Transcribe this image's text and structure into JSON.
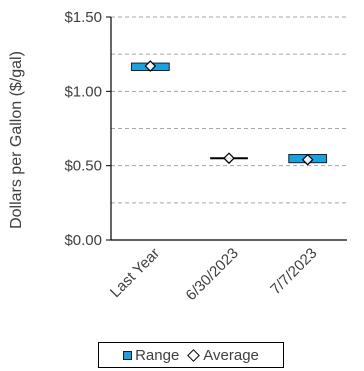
{
  "chart_data": {
    "type": "floating-bar",
    "ylabel": "Dollars per Gallon ($/gal)",
    "ylim": [
      0,
      1.5
    ],
    "yticks": [
      {
        "value": 0,
        "label": "$0.00"
      },
      {
        "value": 0.5,
        "label": "$0.50"
      },
      {
        "value": 1.0,
        "label": "$1.00"
      },
      {
        "value": 1.5,
        "label": "$1.50"
      }
    ],
    "minor_gridlines": [
      0.25,
      0.75,
      1.25
    ],
    "grid": "dashed horizontal",
    "categories": [
      "Last Year",
      "6/30/2023",
      "7/7/2023"
    ],
    "series": [
      {
        "name": "Range",
        "type": "range-bar",
        "color": "#1ba1e2",
        "low": [
          1.14,
          0.545,
          0.52
        ],
        "high": [
          1.19,
          0.555,
          0.575
        ]
      },
      {
        "name": "Average",
        "type": "marker-diamond",
        "values": [
          1.17,
          0.55,
          0.54
        ]
      }
    ],
    "legend": {
      "position": "bottom",
      "items": [
        "Range",
        "Average"
      ]
    }
  }
}
